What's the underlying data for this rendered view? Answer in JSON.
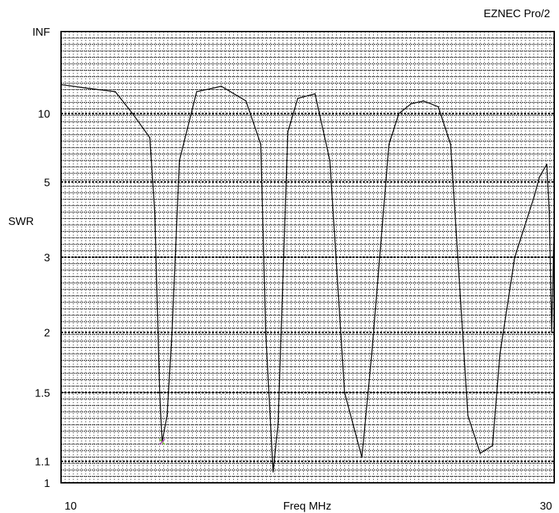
{
  "chart_data": {
    "type": "line",
    "brand": "EZNEC Pro/2",
    "xlabel": "Freq MHz",
    "ylabel": "SWR",
    "xlim": [
      10,
      30
    ],
    "y_scale": "swr-reflection",
    "x_ticks": [
      {
        "value": 10,
        "label": "10"
      },
      {
        "value": 30,
        "label": "30"
      }
    ],
    "y_ticks": [
      {
        "value": "inf",
        "label": "INF"
      },
      {
        "value": 10,
        "label": "10"
      },
      {
        "value": 5,
        "label": "5"
      },
      {
        "value": 3,
        "label": "3"
      },
      {
        "value": 2,
        "label": "2"
      },
      {
        "value": 1.5,
        "label": "1.5"
      },
      {
        "value": 1.1,
        "label": "1.1"
      },
      {
        "value": 1,
        "label": "1"
      }
    ],
    "grid": true,
    "marker": {
      "x": 14.1,
      "y": 1.2,
      "color": "#7fbf3f"
    },
    "colors": {
      "line": "#000000",
      "grid": "#000000",
      "background": "#ffffff"
    },
    "series": [
      {
        "x": [
          10.0,
          11.0,
          12.2,
          12.9,
          13.6,
          13.8,
          14.0,
          14.1,
          14.3,
          14.5,
          14.8,
          15.5,
          16.5,
          17.5,
          18.1,
          18.3,
          18.6,
          18.8,
          19.2,
          19.6,
          20.3,
          20.9,
          21.5,
          22.2,
          22.6,
          23.3,
          23.7,
          24.2,
          24.7,
          25.3,
          25.8,
          26.5,
          27.0,
          27.5,
          27.8,
          28.4,
          29.2,
          29.4,
          29.7,
          29.8,
          29.9,
          30.0
        ],
        "y": [
          16,
          15,
          14,
          10,
          7.5,
          4,
          1.5,
          1.2,
          1.35,
          2,
          6,
          14,
          15.5,
          12,
          7,
          2,
          1.05,
          1.3,
          8,
          12.5,
          13.5,
          6,
          1.5,
          1.12,
          1.8,
          7,
          10,
          11.5,
          12,
          11,
          7,
          1.35,
          1.14,
          1.18,
          1.8,
          3,
          4.5,
          5.2,
          5.8,
          4,
          2,
          3.8
        ]
      }
    ]
  }
}
